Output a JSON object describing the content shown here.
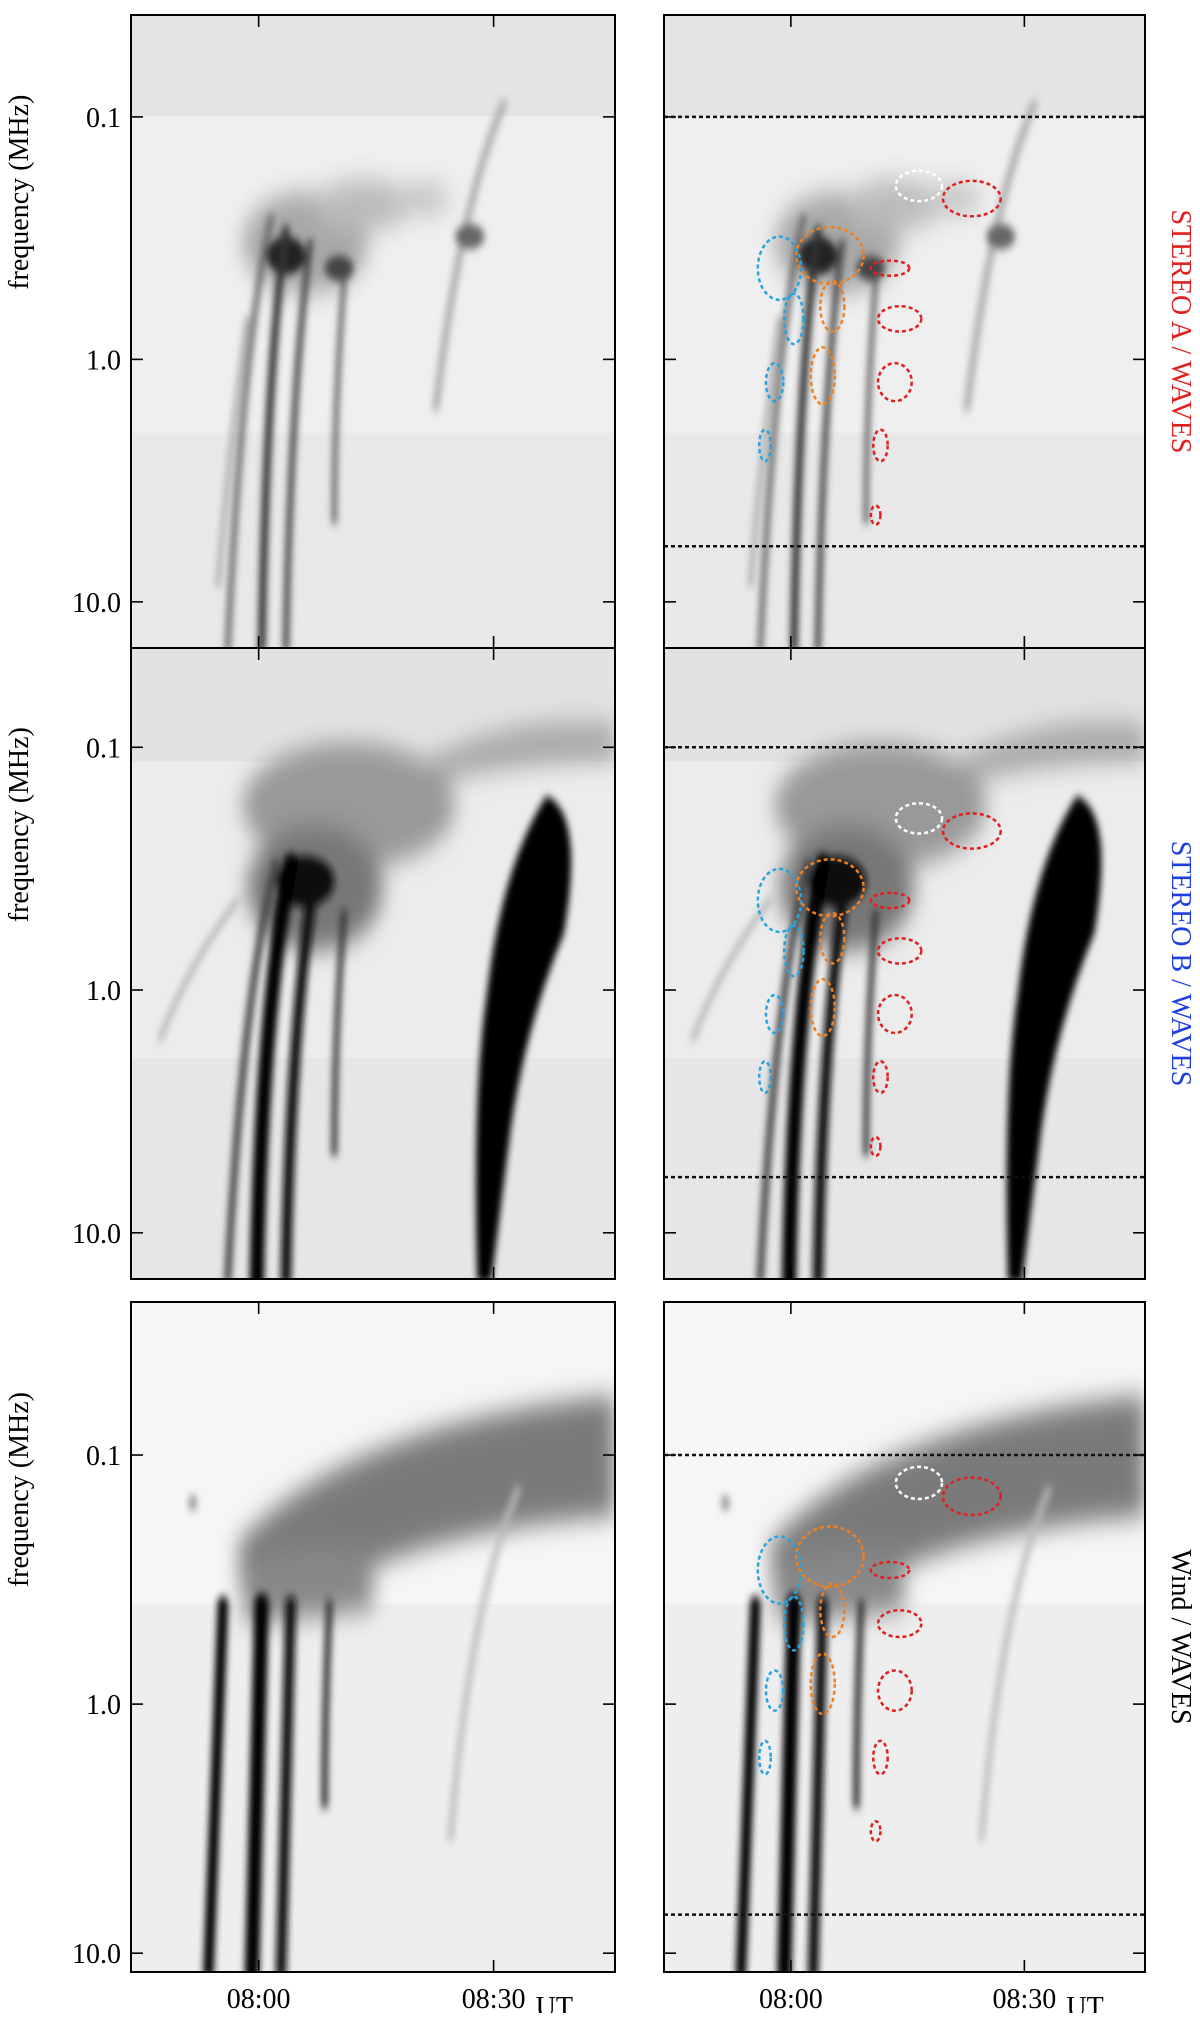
{
  "chart_data": [
    {
      "type": "spectrogram",
      "ylabel": "frequency (MHz)",
      "log_y": true,
      "ylim": [
        0.038,
        15.5
      ],
      "yticks": [
        {
          "value": 0.1,
          "label": "0.1"
        },
        {
          "value": 1,
          "label": "1.0"
        },
        {
          "value": 10,
          "label": "10.0"
        }
      ],
      "xlim": [
        463.7,
        525.5
      ],
      "xticks": [
        480,
        510
      ]
    },
    {
      "type": "spectrogram",
      "log_y": true,
      "ylim": [
        0.038,
        15.5
      ],
      "yticks": [
        0.1,
        1,
        10
      ],
      "xlim": [
        463.7,
        525.5
      ],
      "xticks": [
        480,
        510
      ],
      "hlines": [
        0.1,
        5.9
      ]
    },
    {
      "type": "spectrogram",
      "ylabel": "frequency (MHz)",
      "log_y": true,
      "ylim": [
        0.039,
        15.5
      ],
      "yticks": [
        {
          "value": 0.1,
          "label": "0.1"
        },
        {
          "value": 1,
          "label": "1.0"
        },
        {
          "value": 10,
          "label": "10.0"
        }
      ],
      "xlim": [
        463.7,
        525.5
      ],
      "xticks": [
        480,
        510
      ]
    },
    {
      "type": "spectrogram",
      "log_y": true,
      "ylim": [
        0.039,
        15.5
      ],
      "yticks": [
        0.1,
        1,
        10
      ],
      "xlim": [
        463.7,
        525.5
      ],
      "xticks": [
        480,
        510
      ],
      "hlines": [
        0.1,
        5.9
      ]
    },
    {
      "type": "spectrogram",
      "ylabel": "frequency (MHz)",
      "log_y": true,
      "ylim": [
        0.0243,
        11.9
      ],
      "yticks": [
        {
          "value": 0.1,
          "label": "0.1"
        },
        {
          "value": 1,
          "label": "1.0"
        },
        {
          "value": 10,
          "label": "10.0"
        }
      ],
      "xlim": [
        463.7,
        525.5
      ],
      "xticks": [
        {
          "value": 480,
          "label": "08:00"
        },
        {
          "value": 510,
          "label": "08:30"
        }
      ],
      "x_unit": "UT"
    },
    {
      "type": "spectrogram",
      "log_y": true,
      "ylim": [
        0.0243,
        11.9
      ],
      "yticks": [
        0.1,
        1,
        10
      ],
      "xlim": [
        463.7,
        525.5
      ],
      "xticks": [
        {
          "value": 480,
          "label": "08:00"
        },
        {
          "value": 510,
          "label": "08:30"
        }
      ],
      "x_unit": "UT",
      "hlines": [
        0.1,
        7.0
      ]
    }
  ],
  "row_labels": [
    {
      "text": "STEREO A / WAVES",
      "color": "#e02020"
    },
    {
      "text": "STEREO B / WAVES",
      "color": "#1f3fe0"
    },
    {
      "text": "Wind / WAVES",
      "color": "#000000"
    }
  ]
}
